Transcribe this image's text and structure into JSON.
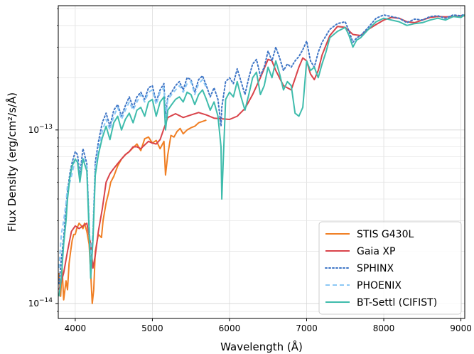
{
  "chart_data": {
    "type": "line",
    "xlabel": "Wavelength (Å)",
    "ylabel": "Flux Density (erg/cm²/s/Å)",
    "xlim": [
      3780,
      9050
    ],
    "ylim": [
      8.2e-15,
      5.2e-13
    ],
    "yscale": "log",
    "grid": true,
    "legend_position": "bottom-right",
    "x_ticks": [
      4000,
      5000,
      6000,
      7000,
      8000,
      9000
    ],
    "x_tick_labels": [
      "4000",
      "5000",
      "6000",
      "7000",
      "8000",
      "9000"
    ],
    "y_major_ticks": [
      1e-14,
      1e-13
    ],
    "y_tick_labels": [
      {
        "base": "10",
        "exp": "−14"
      },
      {
        "base": "10",
        "exp": "−13"
      }
    ],
    "series": [
      {
        "name": "STIS G430L",
        "color": "#f07f24",
        "style": "solid",
        "x": [
          3790,
          3810,
          3830,
          3850,
          3880,
          3900,
          3920,
          3940,
          3960,
          3980,
          4000,
          4020,
          4050,
          4080,
          4100,
          4120,
          4150,
          4180,
          4200,
          4220,
          4240,
          4260,
          4300,
          4340,
          4360,
          4400,
          4430,
          4460,
          4500,
          4550,
          4600,
          4650,
          4700,
          4750,
          4800,
          4850,
          4900,
          4950,
          5000,
          5050,
          5100,
          5150,
          5170,
          5200,
          5240,
          5280,
          5320,
          5360,
          5400,
          5450,
          5500,
          5550,
          5600,
          5650,
          5700
        ],
        "y": [
          1.5e-14,
          1.1e-14,
          1.6e-14,
          1.05e-14,
          1.35e-14,
          1.2e-14,
          1.7e-14,
          2e-14,
          2.3e-14,
          2.5e-14,
          2.5e-14,
          2.7e-14,
          2.9e-14,
          2.8e-14,
          2.7e-14,
          2.9e-14,
          2.6e-14,
          2.2e-14,
          1.5e-14,
          1e-14,
          1.2e-14,
          2e-14,
          2.5e-14,
          2.4e-14,
          3e-14,
          3.8e-14,
          4.3e-14,
          5e-14,
          5.4e-14,
          6.2e-14,
          6.8e-14,
          7.2e-14,
          7.5e-14,
          7.9e-14,
          8.3e-14,
          7.6e-14,
          8.9e-14,
          9.1e-14,
          8.4e-14,
          8.7e-14,
          7.8e-14,
          8.6e-14,
          5.5e-14,
          7.2e-14,
          9.3e-14,
          9.1e-14,
          9.8e-14,
          1.02e-13,
          9.5e-14,
          1e-13,
          1.03e-13,
          1.05e-13,
          1.1e-13,
          1.12e-13,
          1.14e-13
        ]
      },
      {
        "name": "Gaia XP",
        "color": "#d9434a",
        "style": "solid",
        "x": [
          3790,
          3850,
          3900,
          3950,
          4000,
          4050,
          4100,
          4150,
          4200,
          4230,
          4260,
          4300,
          4350,
          4400,
          4450,
          4500,
          4550,
          4600,
          4650,
          4700,
          4750,
          4800,
          4850,
          4900,
          4950,
          5000,
          5050,
          5100,
          5150,
          5200,
          5300,
          5400,
          5500,
          5600,
          5700,
          5800,
          5900,
          6000,
          6100,
          6200,
          6300,
          6400,
          6500,
          6550,
          6600,
          6700,
          6800,
          6900,
          6950,
          7000,
          7050,
          7100,
          7150,
          7200,
          7300,
          7400,
          7500,
          7600,
          7700,
          7800,
          7900,
          8000,
          8100,
          8200,
          8300,
          8400,
          8500,
          8600,
          8700,
          8800,
          8900,
          9000,
          9050
        ],
        "y": [
          1.2e-14,
          1.5e-14,
          2e-14,
          2.6e-14,
          2.8e-14,
          2.7e-14,
          2.8e-14,
          2.9e-14,
          2.2e-14,
          1.6e-14,
          1.9e-14,
          2.6e-14,
          3.5e-14,
          5e-14,
          5.6e-14,
          6e-14,
          6.4e-14,
          6.8e-14,
          7.2e-14,
          7.5e-14,
          8e-14,
          8e-14,
          7.8e-14,
          8.2e-14,
          8.6e-14,
          8.4e-14,
          8.3e-14,
          8.8e-14,
          1.02e-13,
          1.18e-13,
          1.24e-13,
          1.18e-13,
          1.22e-13,
          1.26e-13,
          1.22e-13,
          1.17e-13,
          1.16e-13,
          1.15e-13,
          1.2e-13,
          1.33e-13,
          1.6e-13,
          2e-13,
          2.55e-13,
          2.5e-13,
          2.2e-13,
          1.8e-13,
          1.7e-13,
          2.3e-13,
          2.6e-13,
          2.5e-13,
          2.1e-13,
          1.95e-13,
          2.2e-13,
          2.7e-13,
          3.5e-13,
          3.95e-13,
          3.9e-13,
          3.55e-13,
          3.5e-13,
          3.8e-13,
          4.05e-13,
          4.3e-13,
          4.45e-13,
          4.4e-13,
          4.2e-13,
          4.15e-13,
          4.3e-13,
          4.45e-13,
          4.5e-13,
          4.48e-13,
          4.5e-13,
          4.55e-13,
          4.55e-13
        ]
      },
      {
        "name": "SPHINX",
        "color": "#3f76c6",
        "style": "dotted",
        "x": [
          3790,
          3820,
          3850,
          3880,
          3900,
          3930,
          3960,
          4000,
          4030,
          4060,
          4100,
          4150,
          4180,
          4200,
          4230,
          4260,
          4300,
          4350,
          4400,
          4450,
          4500,
          4550,
          4600,
          4650,
          4700,
          4750,
          4800,
          4850,
          4900,
          4950,
          5000,
          5050,
          5100,
          5150,
          5170,
          5200,
          5250,
          5300,
          5350,
          5400,
          5450,
          5500,
          5550,
          5600,
          5650,
          5700,
          5750,
          5800,
          5850,
          5890,
          5900,
          5950,
          6000,
          6050,
          6100,
          6150,
          6200,
          6250,
          6300,
          6350,
          6400,
          6450,
          6500,
          6550,
          6600,
          6650,
          6700,
          6750,
          6800,
          6850,
          6900,
          6950,
          7000,
          7050,
          7100,
          7150,
          7200,
          7300,
          7400,
          7500,
          7550,
          7600,
          7650,
          7700,
          7800,
          7900,
          8000,
          8100,
          8200,
          8300,
          8400,
          8500,
          8600,
          8700,
          8800,
          8900,
          9000,
          9050
        ],
        "y": [
          1.3e-14,
          1.8e-14,
          2.4e-14,
          3.5e-14,
          4.4e-14,
          5.6e-14,
          6.5e-14,
          7.5e-14,
          7.2e-14,
          5.5e-14,
          7.8e-14,
          6.4e-14,
          2.8e-14,
          1.5e-14,
          2.5e-14,
          6.5e-14,
          8.5e-14,
          1.1e-13,
          1.25e-13,
          1.05e-13,
          1.3e-13,
          1.4e-13,
          1.2e-13,
          1.38e-13,
          1.55e-13,
          1.35e-13,
          1.55e-13,
          1.65e-13,
          1.5e-13,
          1.75e-13,
          1.8e-13,
          1.45e-13,
          1.7e-13,
          1.85e-13,
          1.2e-13,
          1.55e-13,
          1.65e-13,
          1.8e-13,
          1.9e-13,
          1.7e-13,
          2e-13,
          1.95e-13,
          1.65e-13,
          1.95e-13,
          2.05e-13,
          1.8e-13,
          1.55e-13,
          1.75e-13,
          1.5e-13,
          1.05e-13,
          1.35e-13,
          1.9e-13,
          2e-13,
          1.85e-13,
          2.25e-13,
          1.9e-13,
          1.6e-13,
          2e-13,
          2.4e-13,
          2.55e-13,
          2.05e-13,
          2.3e-13,
          2.85e-13,
          2.5e-13,
          3e-13,
          2.6e-13,
          2.2e-13,
          2.4e-13,
          2.3e-13,
          2.5e-13,
          2.65e-13,
          2.9e-13,
          3.25e-13,
          2.5e-13,
          2.3e-13,
          2.8e-13,
          3.2e-13,
          3.8e-13,
          4.1e-13,
          4.2e-13,
          3.7e-13,
          3.2e-13,
          3.4e-13,
          3.5e-13,
          3.9e-13,
          4.4e-13,
          4.6e-13,
          4.5e-13,
          4.4e-13,
          4.15e-13,
          4.35e-13,
          4.3e-13,
          4.5e-13,
          4.55e-13,
          4.4e-13,
          4.6e-13,
          4.55e-13,
          4.65e-13
        ]
      },
      {
        "name": "PHOENIX",
        "color": "#8cc8f5",
        "style": "dashed",
        "x": [
          3790,
          3820,
          3850,
          3880,
          3900,
          3930,
          3960,
          4000,
          4030,
          4060,
          4100,
          4150,
          4180,
          4200,
          4230,
          4260,
          4300,
          4350,
          4400,
          4450,
          4500,
          4550,
          4600,
          4650,
          4700,
          4750,
          4800,
          4850,
          4900,
          4950,
          5000,
          5050,
          5100,
          5150,
          5170,
          5200,
          5250,
          5300,
          5350,
          5400,
          5450,
          5500,
          5550,
          5600,
          5650,
          5700
        ],
        "y": [
          1.6e-14,
          2.5e-14,
          3e-14,
          3.8e-14,
          4.8e-14,
          5e-14,
          5.6e-14,
          6.8e-14,
          6.6e-14,
          5.2e-14,
          7e-14,
          6.1e-14,
          3e-14,
          1.8e-14,
          2.6e-14,
          6e-14,
          7.8e-14,
          9.8e-14,
          1.15e-13,
          1e-13,
          1.2e-13,
          1.35e-13,
          1.15e-13,
          1.3e-13,
          1.45e-13,
          1.3e-13,
          1.45e-13,
          1.6e-13,
          1.45e-13,
          1.65e-13,
          1.7e-13,
          1.4e-13,
          1.65e-13,
          1.75e-13,
          1.15e-13,
          1.5e-13,
          1.6e-13,
          1.7e-13,
          1.8e-13,
          1.65e-13,
          1.85e-13,
          1.9e-13,
          1.6e-13,
          1.85e-13,
          1.95e-13,
          1.75e-13
        ]
      },
      {
        "name": "BT-Settl (CIFIST)",
        "color": "#3fbcac",
        "style": "solid",
        "x": [
          3790,
          3820,
          3850,
          3880,
          3900,
          3930,
          3960,
          4000,
          4030,
          4060,
          4100,
          4150,
          4180,
          4200,
          4230,
          4260,
          4300,
          4350,
          4400,
          4450,
          4500,
          4550,
          4600,
          4650,
          4700,
          4750,
          4800,
          4850,
          4900,
          4950,
          5000,
          5050,
          5100,
          5150,
          5170,
          5200,
          5250,
          5300,
          5350,
          5400,
          5450,
          5500,
          5550,
          5600,
          5650,
          5700,
          5750,
          5800,
          5850,
          5890,
          5900,
          5950,
          6000,
          6050,
          6100,
          6150,
          6200,
          6250,
          6300,
          6350,
          6400,
          6450,
          6500,
          6550,
          6600,
          6650,
          6700,
          6750,
          6800,
          6850,
          6900,
          6950,
          7000,
          7050,
          7100,
          7150,
          7200,
          7250,
          7300,
          7400,
          7500,
          7550,
          7600,
          7650,
          7700,
          7800,
          7900,
          8000,
          8100,
          8200,
          8300,
          8400,
          8500,
          8600,
          8700,
          8800,
          8900,
          9000,
          9050
        ],
        "y": [
          1.1e-14,
          1.4e-14,
          2.2e-14,
          3e-14,
          4e-14,
          5.3e-14,
          6.2e-14,
          6.8e-14,
          6.5e-14,
          5e-14,
          6.8e-14,
          5.8e-14,
          2.6e-14,
          1.4e-14,
          2.3e-14,
          5.5e-14,
          7.2e-14,
          9e-14,
          1.05e-13,
          8.8e-14,
          1.1e-13,
          1.2e-13,
          1e-13,
          1.15e-13,
          1.25e-13,
          1.1e-13,
          1.3e-13,
          1.35e-13,
          1.2e-13,
          1.45e-13,
          1.5e-13,
          1.2e-13,
          1.45e-13,
          1.55e-13,
          1e-13,
          1.3e-13,
          1.4e-13,
          1.5e-13,
          1.55e-13,
          1.45e-13,
          1.65e-13,
          1.6e-13,
          1.4e-13,
          1.6e-13,
          1.7e-13,
          1.5e-13,
          1.3e-13,
          1.45e-13,
          1.2e-13,
          8e-14,
          4e-14,
          1.5e-13,
          1.65e-13,
          1.55e-13,
          1.9e-13,
          1.55e-13,
          1.3e-13,
          1.6e-13,
          2e-13,
          2.15e-13,
          1.6e-13,
          1.8e-13,
          2.3e-13,
          2e-13,
          2.5e-13,
          2.1e-13,
          1.7e-13,
          1.9e-13,
          1.8e-13,
          1.25e-13,
          1.2e-13,
          1.35e-13,
          2.5e-13,
          2.2e-13,
          2.3e-13,
          2e-13,
          2.4e-13,
          2.8e-13,
          3.4e-13,
          3.7e-13,
          3.9e-13,
          3.5e-13,
          3e-13,
          3.3e-13,
          3.4e-13,
          3.8e-13,
          4.2e-13,
          4.4e-13,
          4.3e-13,
          4.2e-13,
          4e-13,
          4.1e-13,
          4.15e-13,
          4.3e-13,
          4.4e-13,
          4.3e-13,
          4.5e-13,
          4.45e-13,
          4.6e-13
        ]
      }
    ]
  }
}
